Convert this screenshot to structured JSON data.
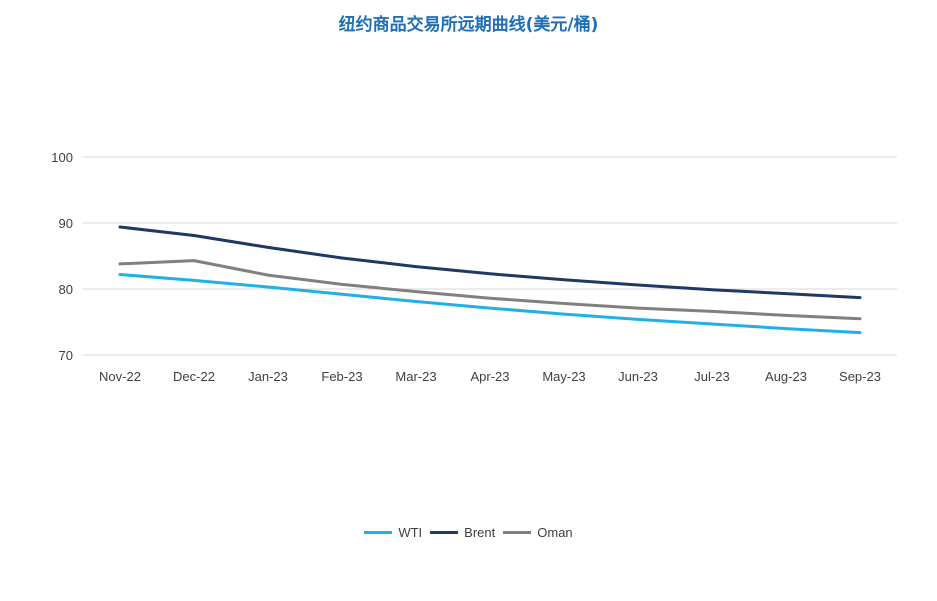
{
  "chart_data": {
    "type": "line",
    "title": "纽约商品交易所远期曲线(美元/桶)",
    "categories": [
      "Nov-22",
      "Dec-22",
      "Jan-23",
      "Feb-23",
      "Mar-23",
      "Apr-23",
      "May-23",
      "Jun-23",
      "Jul-23",
      "Aug-23",
      "Sep-23"
    ],
    "ylim": [
      70,
      100
    ],
    "yticks": [
      70,
      80,
      90,
      100
    ],
    "grid": true,
    "legend_position": "bottom",
    "series": [
      {
        "name": "WTI",
        "color": "#1fb1e6",
        "values": [
          82.2,
          81.3,
          80.3,
          79.2,
          78.1,
          77.1,
          76.2,
          75.4,
          74.7,
          74.0,
          73.4
        ]
      },
      {
        "name": "Brent",
        "color": "#203864",
        "values": [
          89.4,
          88.1,
          86.3,
          84.7,
          83.4,
          82.3,
          81.4,
          80.6,
          79.9,
          79.3,
          78.7
        ]
      },
      {
        "name": "Oman",
        "color": "#808080",
        "values": [
          83.8,
          84.3,
          82.1,
          80.7,
          79.6,
          78.6,
          77.8,
          77.1,
          76.6,
          76.0,
          75.5
        ]
      }
    ]
  }
}
